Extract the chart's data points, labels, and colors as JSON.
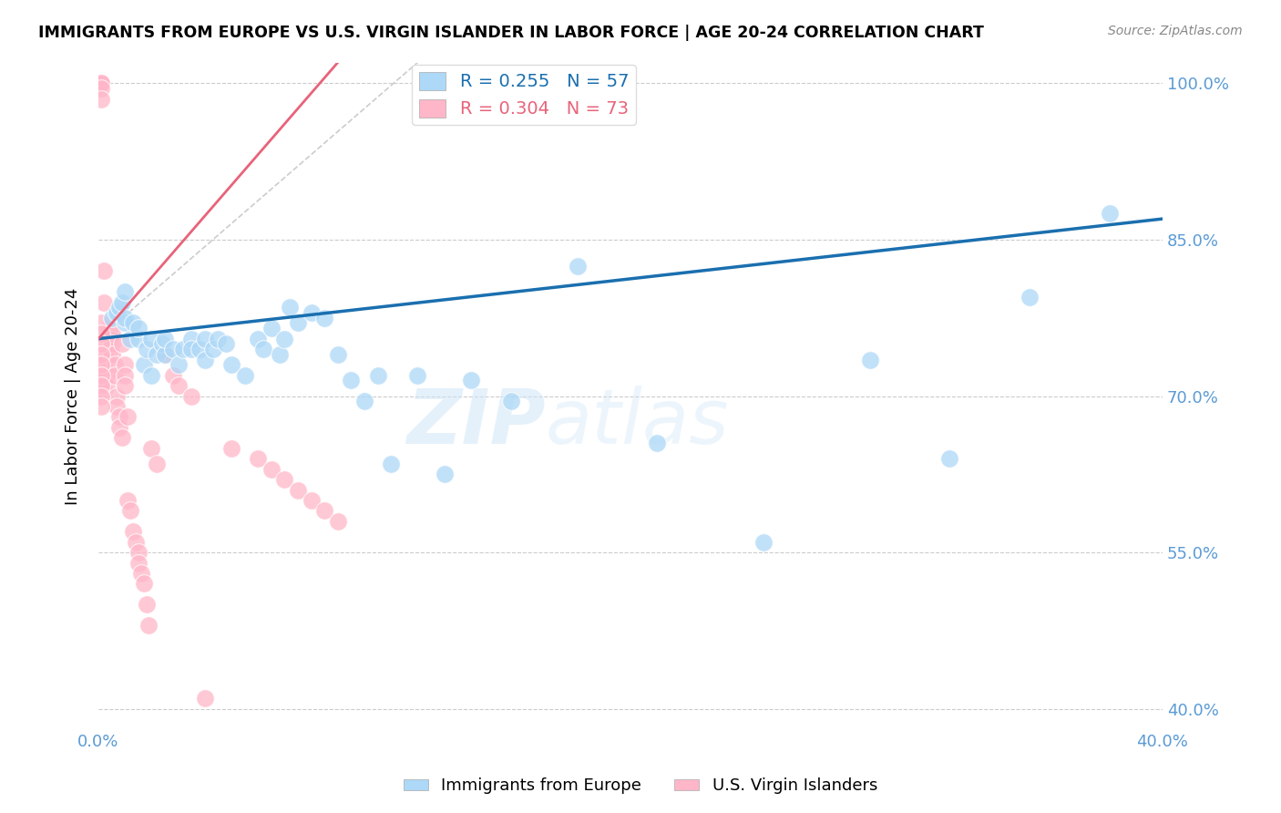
{
  "title": "IMMIGRANTS FROM EUROPE VS U.S. VIRGIN ISLANDER IN LABOR FORCE | AGE 20-24 CORRELATION CHART",
  "source": "Source: ZipAtlas.com",
  "ylabel": "In Labor Force | Age 20-24",
  "xlim": [
    0.0,
    0.4
  ],
  "ylim": [
    0.38,
    1.02
  ],
  "xticks": [
    0.0,
    0.05,
    0.1,
    0.15,
    0.2,
    0.25,
    0.3,
    0.35,
    0.4
  ],
  "yticks": [
    0.4,
    0.55,
    0.7,
    0.85,
    1.0
  ],
  "yticklabels": [
    "40.0%",
    "55.0%",
    "70.0%",
    "85.0%",
    "100.0%"
  ],
  "R_blue": 0.255,
  "N_blue": 57,
  "R_pink": 0.304,
  "N_pink": 73,
  "blue_color": "#add8f7",
  "pink_color": "#ffb6c8",
  "blue_line_color": "#1a6faf",
  "pink_line_color": "#e8637a",
  "legend_blue_label": "Immigrants from Europe",
  "legend_pink_label": "U.S. Virgin Islanders",
  "blue_scatter_x": [
    0.005,
    0.007,
    0.008,
    0.009,
    0.01,
    0.01,
    0.01,
    0.012,
    0.013,
    0.015,
    0.015,
    0.017,
    0.018,
    0.02,
    0.02,
    0.022,
    0.024,
    0.025,
    0.025,
    0.028,
    0.03,
    0.032,
    0.035,
    0.035,
    0.038,
    0.04,
    0.04,
    0.043,
    0.045,
    0.048,
    0.05,
    0.055,
    0.06,
    0.062,
    0.065,
    0.068,
    0.07,
    0.072,
    0.075,
    0.08,
    0.085,
    0.09,
    0.095,
    0.1,
    0.105,
    0.11,
    0.12,
    0.13,
    0.14,
    0.155,
    0.18,
    0.21,
    0.25,
    0.29,
    0.32,
    0.35,
    0.38
  ],
  "blue_scatter_y": [
    0.775,
    0.78,
    0.785,
    0.79,
    0.77,
    0.775,
    0.8,
    0.755,
    0.77,
    0.755,
    0.765,
    0.73,
    0.745,
    0.755,
    0.72,
    0.74,
    0.75,
    0.74,
    0.755,
    0.745,
    0.73,
    0.745,
    0.755,
    0.745,
    0.745,
    0.735,
    0.755,
    0.745,
    0.755,
    0.75,
    0.73,
    0.72,
    0.755,
    0.745,
    0.765,
    0.74,
    0.755,
    0.785,
    0.77,
    0.78,
    0.775,
    0.74,
    0.715,
    0.695,
    0.72,
    0.635,
    0.72,
    0.625,
    0.715,
    0.695,
    0.825,
    0.655,
    0.56,
    0.735,
    0.64,
    0.795,
    0.875
  ],
  "pink_scatter_x": [
    0.001,
    0.001,
    0.001,
    0.001,
    0.001,
    0.001,
    0.001,
    0.001,
    0.002,
    0.002,
    0.002,
    0.002,
    0.002,
    0.002,
    0.003,
    0.003,
    0.003,
    0.003,
    0.003,
    0.004,
    0.004,
    0.004,
    0.005,
    0.005,
    0.005,
    0.006,
    0.006,
    0.007,
    0.007,
    0.008,
    0.008,
    0.009,
    0.009,
    0.01,
    0.01,
    0.01,
    0.011,
    0.011,
    0.012,
    0.013,
    0.014,
    0.015,
    0.015,
    0.016,
    0.017,
    0.018,
    0.019,
    0.02,
    0.022,
    0.025,
    0.028,
    0.03,
    0.035,
    0.04,
    0.05,
    0.06,
    0.065,
    0.07,
    0.075,
    0.08,
    0.085,
    0.09,
    0.002,
    0.002,
    0.001,
    0.001,
    0.001,
    0.001,
    0.001,
    0.001,
    0.001,
    0.001,
    0.001
  ],
  "pink_scatter_y": [
    1.0,
    1.0,
    1.0,
    1.0,
    1.0,
    1.0,
    0.995,
    0.985,
    0.755,
    0.745,
    0.735,
    0.725,
    0.715,
    0.705,
    0.755,
    0.745,
    0.735,
    0.72,
    0.71,
    0.765,
    0.755,
    0.745,
    0.76,
    0.75,
    0.74,
    0.73,
    0.72,
    0.7,
    0.69,
    0.68,
    0.67,
    0.66,
    0.75,
    0.73,
    0.72,
    0.71,
    0.68,
    0.6,
    0.59,
    0.57,
    0.56,
    0.55,
    0.54,
    0.53,
    0.52,
    0.5,
    0.48,
    0.65,
    0.635,
    0.74,
    0.72,
    0.71,
    0.7,
    0.41,
    0.65,
    0.64,
    0.63,
    0.62,
    0.61,
    0.6,
    0.59,
    0.58,
    0.82,
    0.79,
    0.77,
    0.76,
    0.75,
    0.74,
    0.73,
    0.72,
    0.71,
    0.7,
    0.69
  ],
  "watermark_zip": "ZIP",
  "watermark_atlas": "atlas",
  "background_color": "#ffffff",
  "grid_color": "#cccccc",
  "tick_color": "#5b9bd5"
}
